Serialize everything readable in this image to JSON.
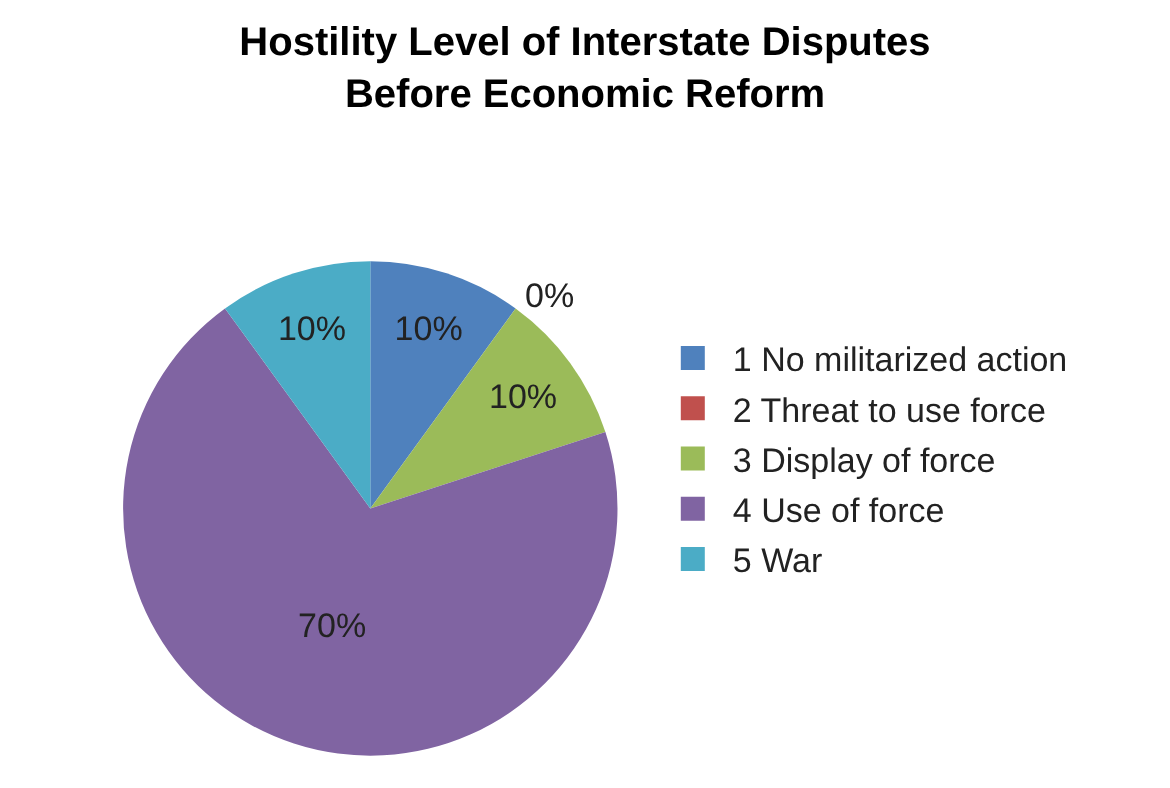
{
  "chart_data": {
    "type": "pie",
    "title": "Hostility Level of Interstate Disputes\nBefore Economic Reform",
    "categories": [
      "1 No militarized action",
      "2 Threat to use force",
      "3 Display of force",
      "4 Use of force",
      "5 War"
    ],
    "values": [
      10,
      0,
      10,
      70,
      10
    ],
    "colors": [
      "#4f81bd",
      "#c0504d",
      "#9bbb59",
      "#8064a2",
      "#4bacc6"
    ],
    "value_labels": [
      "10%",
      "0%",
      "10%",
      "70%",
      "10%"
    ],
    "legend": "right"
  }
}
